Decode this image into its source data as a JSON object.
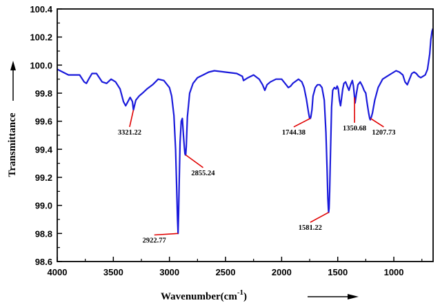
{
  "chart_data": {
    "type": "line",
    "title": "",
    "xlabel": "Wavenumber(cm",
    "xlabel_superscript": "-1",
    "xlabel_suffix": ")",
    "ylabel": "Transmittance",
    "xlim": [
      4000,
      650
    ],
    "x_reversed": true,
    "ylim": [
      98.6,
      100.4
    ],
    "x_ticks": [
      4000,
      3500,
      3000,
      2500,
      2000,
      1500,
      1000
    ],
    "x_tick_labels": [
      "4000",
      "3500",
      "3000",
      "2500",
      "2000",
      "1500",
      "1000"
    ],
    "y_ticks": [
      98.6,
      98.8,
      99.0,
      99.2,
      99.4,
      99.6,
      99.8,
      100.0,
      100.2,
      100.4
    ],
    "y_tick_labels": [
      "98.6",
      "98.8",
      "99.0",
      "99.2",
      "99.4",
      "99.6",
      "99.8",
      "100.0",
      "100.2",
      "100.4"
    ],
    "grid": false,
    "series": [
      {
        "color": "#1a1adb",
        "x": [
          4000,
          3900,
          3800,
          3760,
          3740,
          3720,
          3690,
          3650,
          3600,
          3560,
          3520,
          3480,
          3440,
          3410,
          3390,
          3370,
          3350,
          3330,
          3321,
          3300,
          3270,
          3240,
          3200,
          3150,
          3100,
          3050,
          3000,
          2980,
          2960,
          2945,
          2935,
          2928,
          2923,
          2918,
          2912,
          2905,
          2895,
          2885,
          2875,
          2868,
          2862,
          2858,
          2855,
          2850,
          2840,
          2820,
          2790,
          2750,
          2700,
          2650,
          2600,
          2500,
          2400,
          2350,
          2340,
          2300,
          2250,
          2200,
          2170,
          2150,
          2130,
          2100,
          2050,
          2000,
          1960,
          1940,
          1920,
          1900,
          1850,
          1820,
          1800,
          1780,
          1760,
          1750,
          1744,
          1740,
          1730,
          1720,
          1700,
          1680,
          1660,
          1640,
          1620,
          1605,
          1595,
          1588,
          1584,
          1581,
          1577,
          1572,
          1565,
          1555,
          1545,
          1530,
          1515,
          1505,
          1495,
          1485,
          1475,
          1465,
          1455,
          1445,
          1430,
          1415,
          1400,
          1385,
          1370,
          1360,
          1350,
          1345,
          1335,
          1320,
          1300,
          1280,
          1265,
          1250,
          1240,
          1225,
          1215,
          1210,
          1207,
          1200,
          1190,
          1170,
          1140,
          1100,
          1060,
          1020,
          980,
          950,
          920,
          900,
          880,
          860,
          840,
          820,
          800,
          780,
          760,
          740,
          720,
          700,
          680,
          670,
          660,
          652
        ],
        "y": [
          99.97,
          99.93,
          99.93,
          99.88,
          99.87,
          99.9,
          99.94,
          99.94,
          99.88,
          99.87,
          99.9,
          99.88,
          99.83,
          99.74,
          99.71,
          99.74,
          99.77,
          99.74,
          99.68,
          99.75,
          99.78,
          99.8,
          99.83,
          99.86,
          99.9,
          99.89,
          99.84,
          99.78,
          99.64,
          99.4,
          99.1,
          98.9,
          98.8,
          98.95,
          99.2,
          99.45,
          99.6,
          99.62,
          99.5,
          99.42,
          99.37,
          99.36,
          99.36,
          99.42,
          99.63,
          99.8,
          99.87,
          99.91,
          99.93,
          99.95,
          99.96,
          99.95,
          99.94,
          99.92,
          99.89,
          99.91,
          99.93,
          99.9,
          99.86,
          99.82,
          99.86,
          99.88,
          99.9,
          99.9,
          99.86,
          99.84,
          99.85,
          99.87,
          99.9,
          99.88,
          99.84,
          99.76,
          99.66,
          99.62,
          99.62,
          99.63,
          99.68,
          99.78,
          99.84,
          99.86,
          99.86,
          99.84,
          99.75,
          99.52,
          99.25,
          99.05,
          98.98,
          98.95,
          98.98,
          99.1,
          99.35,
          99.7,
          99.82,
          99.84,
          99.83,
          99.85,
          99.83,
          99.75,
          99.71,
          99.77,
          99.83,
          99.87,
          99.88,
          99.85,
          99.82,
          99.86,
          99.89,
          99.85,
          99.77,
          99.73,
          99.79,
          99.86,
          99.88,
          99.85,
          99.82,
          99.8,
          99.74,
          99.66,
          99.62,
          99.61,
          99.62,
          99.63,
          99.66,
          99.75,
          99.84,
          99.9,
          99.92,
          99.94,
          99.96,
          99.95,
          99.93,
          99.88,
          99.86,
          99.9,
          99.94,
          99.95,
          99.94,
          99.92,
          99.91,
          99.92,
          99.93,
          99.97,
          100.08,
          100.18,
          100.24,
          100.26
        ]
      }
    ],
    "annotations": [
      {
        "label": "3321.22",
        "x": 3321.22,
        "y": 99.68,
        "label_x": 3355,
        "label_y": 99.52
      },
      {
        "label": "2922.77",
        "x": 2922.77,
        "y": 98.8,
        "label_x": 3135,
        "label_y": 98.75
      },
      {
        "label": "2855.24",
        "x": 2855.24,
        "y": 99.36,
        "label_x": 2700,
        "label_y": 99.23
      },
      {
        "label": "1744.38",
        "x": 1744.38,
        "y": 99.62,
        "label_x": 1892,
        "label_y": 99.52
      },
      {
        "label": "1581.22",
        "x": 1581.22,
        "y": 98.95,
        "label_x": 1745,
        "label_y": 98.84
      },
      {
        "label": "1350.68",
        "x": 1350.68,
        "y": 99.77,
        "label_x": 1350,
        "label_y": 99.55
      },
      {
        "label": "1207.73",
        "x": 1207.73,
        "y": 99.62,
        "label_x": 1090,
        "label_y": 99.52
      }
    ],
    "annotation_color": "#e00000"
  }
}
